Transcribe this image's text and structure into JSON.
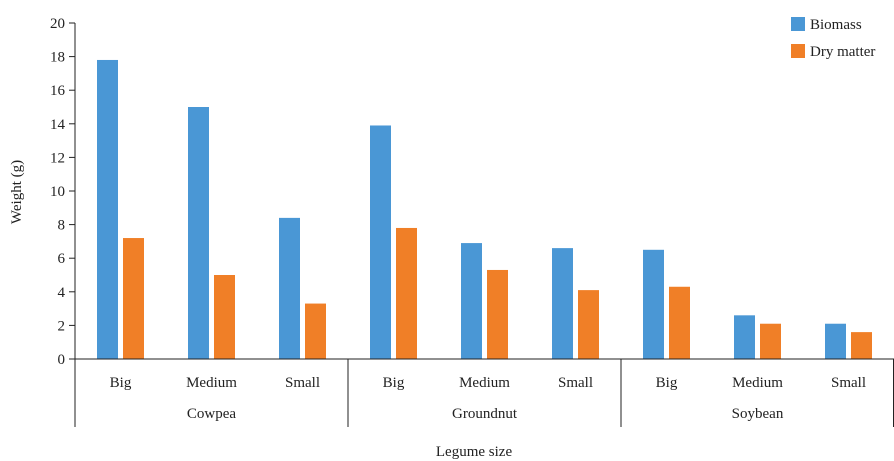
{
  "chart_data": {
    "type": "bar",
    "title": "",
    "xlabel": "Legume size",
    "ylabel": "Weight (g)",
    "ylim": [
      0,
      20
    ],
    "yticks": [
      0,
      2,
      4,
      6,
      8,
      10,
      12,
      14,
      16,
      18,
      20
    ],
    "groups": [
      "Cowpea",
      "Groundnut",
      "Soybean"
    ],
    "subcategories": [
      "Big",
      "Medium",
      "Small"
    ],
    "categories": [
      "Cowpea Big",
      "Cowpea Medium",
      "Cowpea Small",
      "Groundnut Big",
      "Groundnut Medium",
      "Groundnut Small",
      "Soybean Big",
      "Soybean Medium",
      "Soybean Small"
    ],
    "series": [
      {
        "name": "Biomass",
        "color": "#4a97d5",
        "values": [
          17.8,
          15.0,
          8.4,
          13.9,
          6.9,
          6.6,
          6.5,
          2.6,
          2.1
        ]
      },
      {
        "name": "Dry matter",
        "color": "#f07f27",
        "values": [
          7.2,
          5.0,
          3.3,
          7.8,
          5.3,
          4.1,
          4.3,
          2.1,
          1.6
        ]
      }
    ],
    "legend_position": "top-right",
    "grid": false
  }
}
